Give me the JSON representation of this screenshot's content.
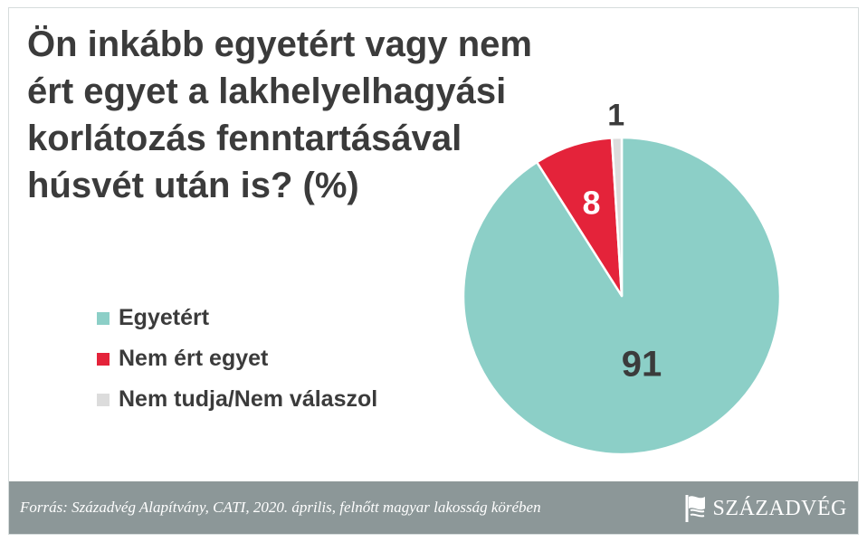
{
  "title": "Ön inkább egyetért vagy nem\nért egyet a lakhelyelhagyási\nkorlátozás fenntartásával\nhúsvét után is? (%)",
  "chart_data": {
    "type": "pie",
    "title": "Ön inkább egyetért vagy nem ért egyet a lakhelyelhagyási korlátozás fenntartásával húsvét után is? (%)",
    "start": "12 o'clock, clockwise",
    "slices": [
      {
        "label": "Egyetért",
        "value": 91,
        "color": "#8ccfc7",
        "label_color": "#3b3b3b"
      },
      {
        "label": "Nem ért egyet",
        "value": 8,
        "color": "#e4233a",
        "label_color": "#ffffff"
      },
      {
        "label": "Nem tudja/Nem válaszol",
        "value": 1,
        "color": "#dcdcdc",
        "label_color": "#3b3b3b"
      }
    ],
    "legend_position": "left"
  },
  "footer": {
    "source": "Forrás: Századvég Alapítvány, CATI, 2020. április, felnőtt magyar lakosság körében",
    "logo_text": "SZÁZADVÉG"
  },
  "colors": {
    "footer_bg": "#8c9798",
    "title_text": "#3b3b3b"
  }
}
